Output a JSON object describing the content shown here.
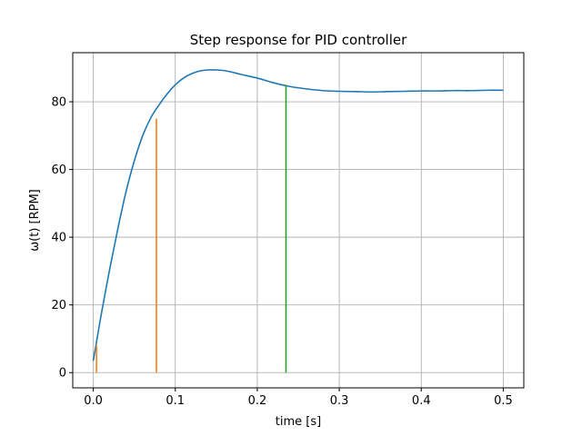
{
  "chart_data": {
    "type": "line",
    "title": "Step response for PID controller",
    "xlabel": "time [s]",
    "ylabel": "ω(t) [RPM]",
    "xlim": [
      -0.025,
      0.525
    ],
    "ylim": [
      -4.5,
      94.5
    ],
    "xticks": [
      0.0,
      0.1,
      0.2,
      0.3,
      0.4,
      0.5
    ],
    "xtick_labels": [
      "0.0",
      "0.1",
      "0.2",
      "0.3",
      "0.4",
      "0.5"
    ],
    "yticks": [
      0,
      20,
      40,
      60,
      80
    ],
    "ytick_labels": [
      "0",
      "20",
      "40",
      "60",
      "80"
    ],
    "grid": true,
    "series": [
      {
        "color": "#1f77b4",
        "x": [
          0.0,
          0.005,
          0.01,
          0.02,
          0.03,
          0.04,
          0.05,
          0.06,
          0.07,
          0.08,
          0.09,
          0.1,
          0.11,
          0.12,
          0.13,
          0.14,
          0.15,
          0.16,
          0.17,
          0.18,
          0.2,
          0.22,
          0.24,
          0.26,
          0.28,
          0.3,
          0.32,
          0.34,
          0.36,
          0.38,
          0.4,
          0.42,
          0.44,
          0.46,
          0.48,
          0.5
        ],
        "y": [
          3.5,
          10.5,
          17.5,
          30.5,
          42.5,
          53.5,
          62.5,
          69.8,
          75.2,
          79.0,
          82.3,
          85.0,
          87.0,
          88.3,
          89.1,
          89.4,
          89.4,
          89.2,
          88.7,
          88.1,
          87.0,
          85.6,
          84.5,
          83.8,
          83.3,
          83.1,
          83.0,
          82.9,
          83.0,
          83.1,
          83.2,
          83.2,
          83.3,
          83.3,
          83.4,
          83.4
        ]
      }
    ],
    "vertical_lines": [
      {
        "color": "#ff7f0e",
        "x": 0.004,
        "y": [
          0,
          8
        ]
      },
      {
        "color": "#ff7f0e",
        "x": 0.077,
        "y": [
          0,
          75
        ]
      },
      {
        "color": "#2ca02c",
        "x": 0.235,
        "y": [
          0,
          85
        ]
      }
    ]
  }
}
